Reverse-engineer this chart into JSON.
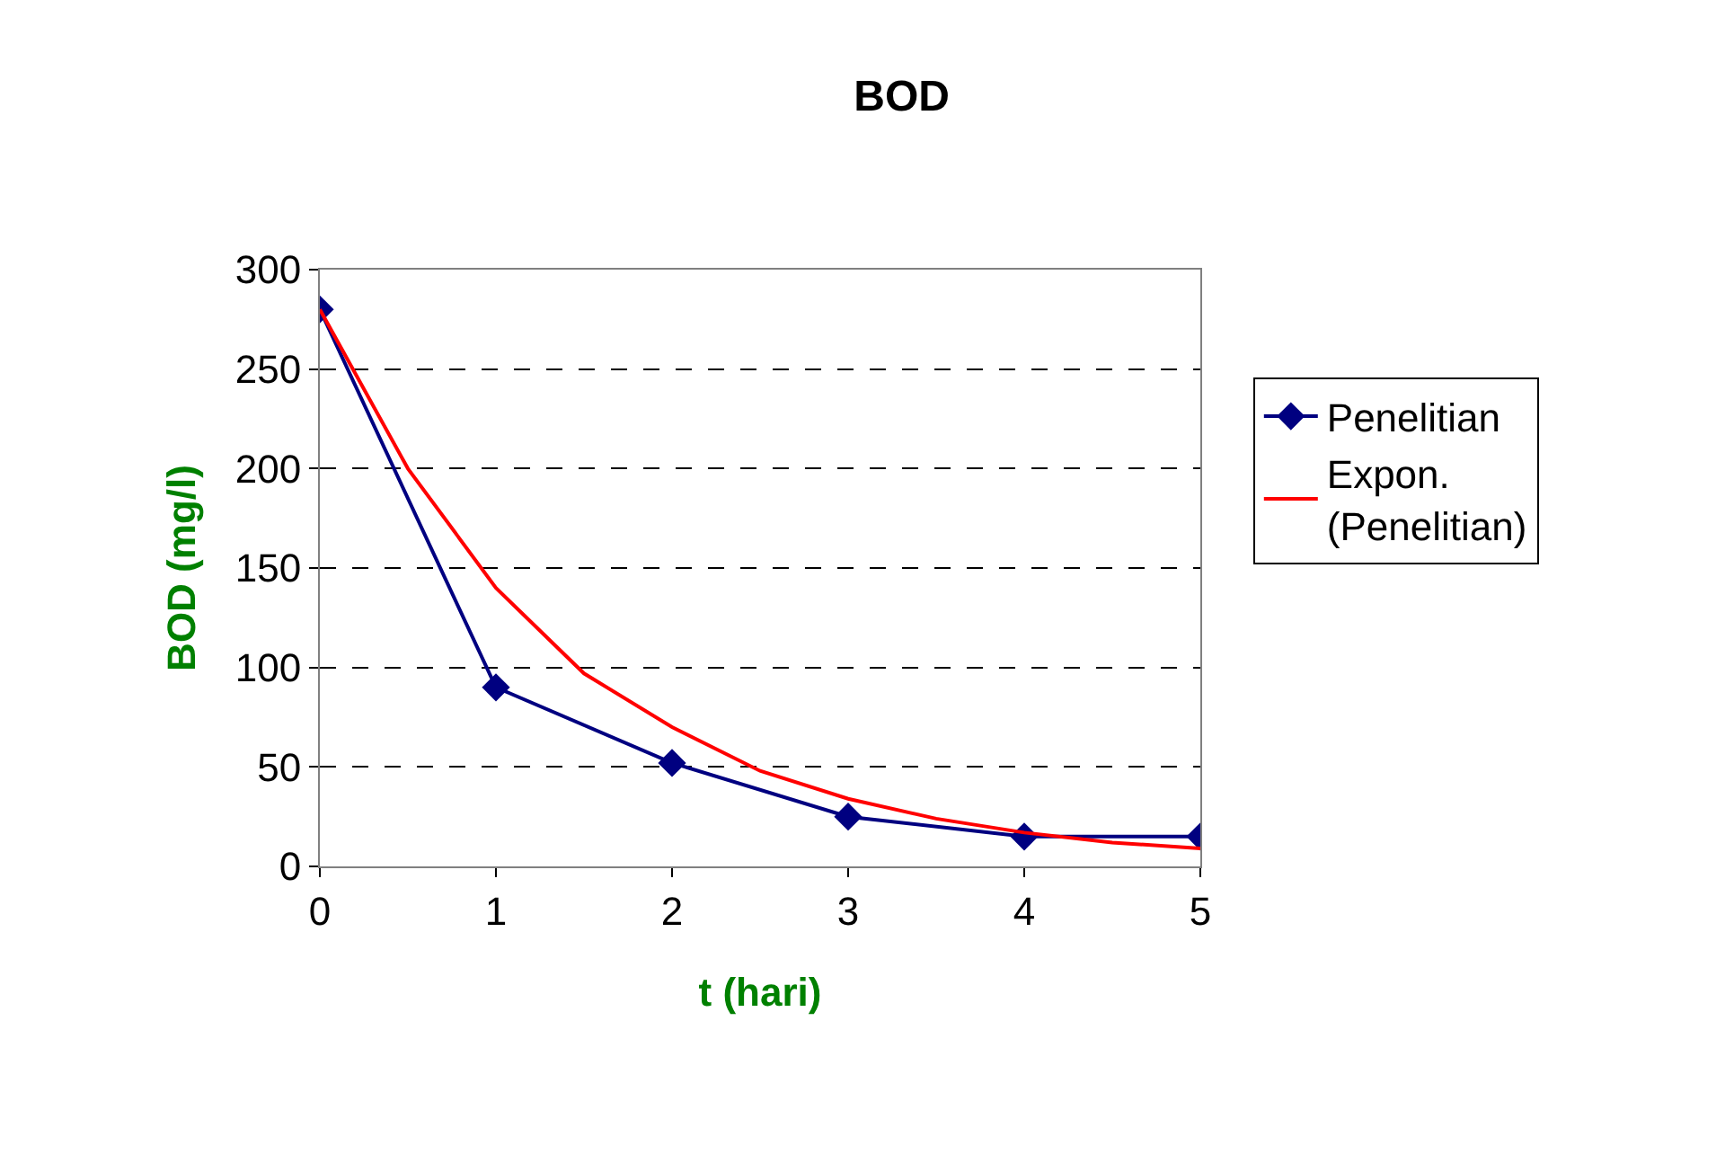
{
  "chart_data": {
    "type": "line",
    "title": "BOD",
    "xlabel": "t (hari)",
    "ylabel": "BOD (mg/l)",
    "xlim": [
      0,
      5
    ],
    "xticks": [
      0,
      1,
      2,
      3,
      4,
      5
    ],
    "ylim": [
      0,
      300
    ],
    "yticks": [
      0,
      50,
      100,
      150,
      200,
      250,
      300
    ],
    "grid": "y",
    "legend": "right",
    "series": [
      {
        "name": "Penelitian",
        "color": "#000080",
        "marker": "diamond",
        "x": [
          0,
          1,
          2,
          3,
          4,
          5
        ],
        "values": [
          280,
          90,
          52,
          25,
          15,
          15
        ]
      },
      {
        "name": "Expon.\n(Penelitian)",
        "color": "#ff0000",
        "marker": "none",
        "x": [
          0,
          0.5,
          1,
          1.5,
          2,
          2.5,
          3,
          3.5,
          4,
          4.5,
          5
        ],
        "values": [
          280,
          200,
          140,
          97,
          70,
          48,
          34,
          24,
          17,
          12,
          9
        ]
      }
    ]
  }
}
